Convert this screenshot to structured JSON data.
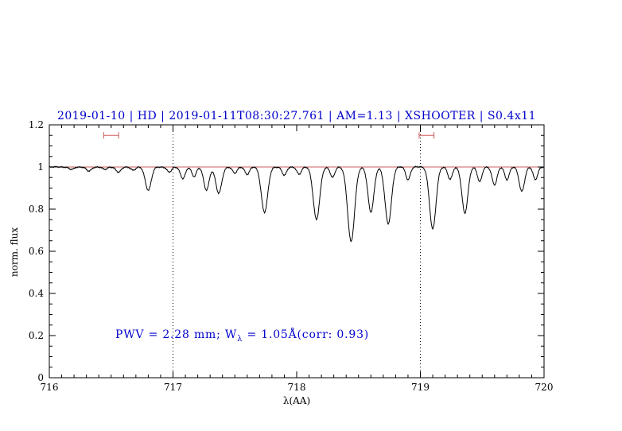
{
  "title": {
    "text": "2019-01-10 | HD | 2019-01-11T08:30:27.761 | AM=1.13 | XSHOOTER | S0.4x11",
    "color": "#0000cd"
  },
  "annotation": {
    "pre": "PWV = 2.28 mm; W",
    "sub": "λ",
    "post": " = 1.05Å(corr: 0.93)",
    "color": "#0000cd"
  },
  "colors": {
    "spectrum": "#000000",
    "continuum": "#cd5c5c",
    "marker": "#cd5c5c",
    "gridline": "#000000",
    "axis": "#000000"
  },
  "chart_data": {
    "type": "line",
    "title": "2019-01-10 | HD | 2019-01-11T08:30:27.761 | AM=1.13 | XSHOOTER | S0.4x11",
    "xlabel": "λ(AA)",
    "ylabel": "norm. flux",
    "xlim": [
      716,
      720
    ],
    "ylim": [
      0,
      1.2
    ],
    "xticks": [
      716,
      717,
      718,
      719,
      720
    ],
    "xtick_labels": [
      "716",
      "717",
      "718",
      "719",
      "720"
    ],
    "x_minor_step": 0.1,
    "yticks": [
      0,
      0.2,
      0.4,
      0.6,
      0.8,
      1,
      1.2
    ],
    "ytick_labels": [
      "0",
      "0.2",
      "0.4",
      "0.6",
      "0.8",
      "1",
      "1.2"
    ],
    "y_minor_step": 0.05,
    "dotted_vlines": [
      717,
      719
    ],
    "series": [
      {
        "name": "observed_spectrum",
        "color": "#000000"
      },
      {
        "name": "continuum_fit",
        "color": "#cd5c5c",
        "y": 1.0
      }
    ],
    "region_markers": [
      {
        "x_center": 716.5,
        "half_width": 0.06,
        "y": 1.15
      },
      {
        "x_center": 719.05,
        "half_width": 0.06,
        "y": 1.15
      }
    ],
    "sample_step": 0.004,
    "noise_amplitude": 0.004,
    "absorption_lines": [
      {
        "center": 716.18,
        "depth": 0.012,
        "sigma": 0.02
      },
      {
        "center": 716.32,
        "depth": 0.02,
        "sigma": 0.02
      },
      {
        "center": 716.45,
        "depth": 0.012,
        "sigma": 0.018
      },
      {
        "center": 716.56,
        "depth": 0.025,
        "sigma": 0.02
      },
      {
        "center": 716.68,
        "depth": 0.015,
        "sigma": 0.018
      },
      {
        "center": 716.8,
        "depth": 0.11,
        "sigma": 0.024
      },
      {
        "center": 716.97,
        "depth": 0.025,
        "sigma": 0.018
      },
      {
        "center": 717.08,
        "depth": 0.055,
        "sigma": 0.02
      },
      {
        "center": 717.17,
        "depth": 0.045,
        "sigma": 0.018
      },
      {
        "center": 717.27,
        "depth": 0.11,
        "sigma": 0.022
      },
      {
        "center": 717.37,
        "depth": 0.125,
        "sigma": 0.024
      },
      {
        "center": 717.5,
        "depth": 0.03,
        "sigma": 0.018
      },
      {
        "center": 717.6,
        "depth": 0.035,
        "sigma": 0.018
      },
      {
        "center": 717.74,
        "depth": 0.215,
        "sigma": 0.026
      },
      {
        "center": 717.9,
        "depth": 0.04,
        "sigma": 0.018
      },
      {
        "center": 718.02,
        "depth": 0.035,
        "sigma": 0.018
      },
      {
        "center": 718.16,
        "depth": 0.25,
        "sigma": 0.026
      },
      {
        "center": 718.29,
        "depth": 0.05,
        "sigma": 0.018
      },
      {
        "center": 718.44,
        "depth": 0.355,
        "sigma": 0.028
      },
      {
        "center": 718.6,
        "depth": 0.215,
        "sigma": 0.024
      },
      {
        "center": 718.74,
        "depth": 0.27,
        "sigma": 0.026
      },
      {
        "center": 718.9,
        "depth": 0.06,
        "sigma": 0.018
      },
      {
        "center": 719.1,
        "depth": 0.295,
        "sigma": 0.026
      },
      {
        "center": 719.24,
        "depth": 0.06,
        "sigma": 0.018
      },
      {
        "center": 719.36,
        "depth": 0.22,
        "sigma": 0.024
      },
      {
        "center": 719.48,
        "depth": 0.07,
        "sigma": 0.018
      },
      {
        "center": 719.6,
        "depth": 0.085,
        "sigma": 0.02
      },
      {
        "center": 719.7,
        "depth": 0.06,
        "sigma": 0.018
      },
      {
        "center": 719.82,
        "depth": 0.115,
        "sigma": 0.022
      },
      {
        "center": 719.93,
        "depth": 0.06,
        "sigma": 0.018
      }
    ]
  }
}
